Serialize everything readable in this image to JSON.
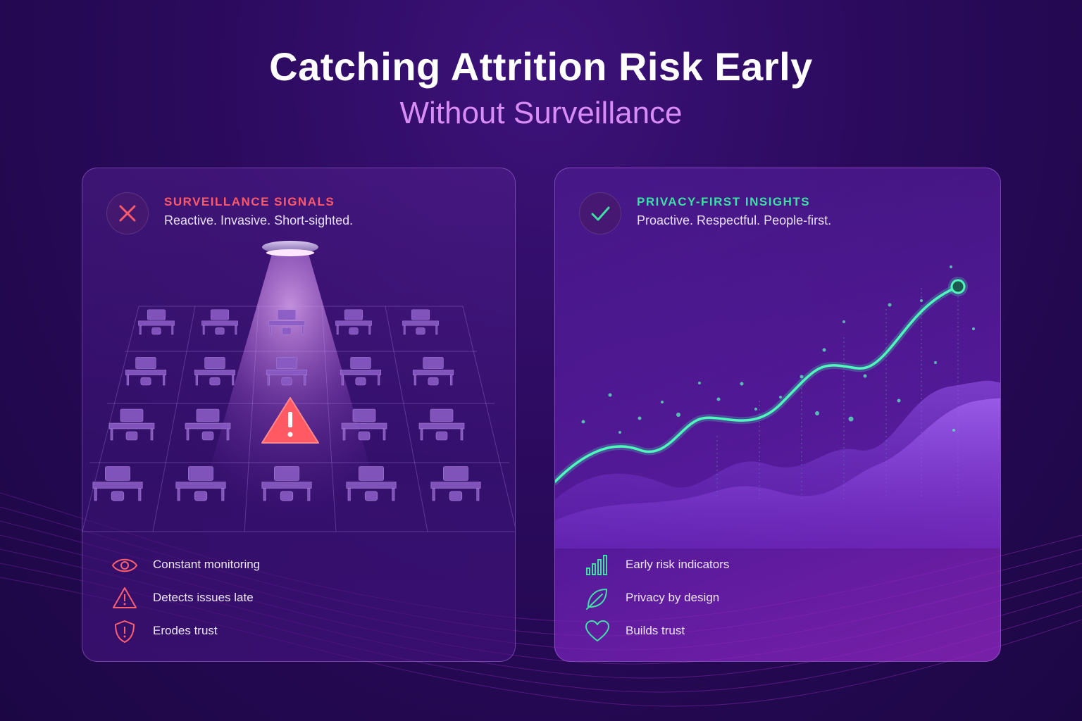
{
  "header": {
    "title": "Catching Attrition Risk Early",
    "subtitle": "Without Surveillance"
  },
  "left_panel": {
    "heading": "SURVEILLANCE SIGNALS",
    "subheading": "Reactive. Invasive. Short-sighted.",
    "badge_icon": "x-icon",
    "accent_color": "#ff5a6a",
    "illustration": "spotlight-over-office-desks-with-warning-icon",
    "features": [
      {
        "icon": "eye-icon",
        "label": "Constant monitoring"
      },
      {
        "icon": "warning-icon",
        "label": "Detects issues late"
      },
      {
        "icon": "shield-alert-icon",
        "label": "Erodes trust"
      }
    ]
  },
  "right_panel": {
    "heading": "PRIVACY-FIRST INSIGHTS",
    "subheading": "Proactive. Respectful. People-first.",
    "badge_icon": "check-icon",
    "accent_color": "#3fe0a6",
    "illustration": "rising-trend-line-chart",
    "features": [
      {
        "icon": "bar-chart-icon",
        "label": "Early risk indicators"
      },
      {
        "icon": "leaf-icon",
        "label": "Privacy by design"
      },
      {
        "icon": "heart-icon",
        "label": "Builds trust"
      }
    ]
  }
}
